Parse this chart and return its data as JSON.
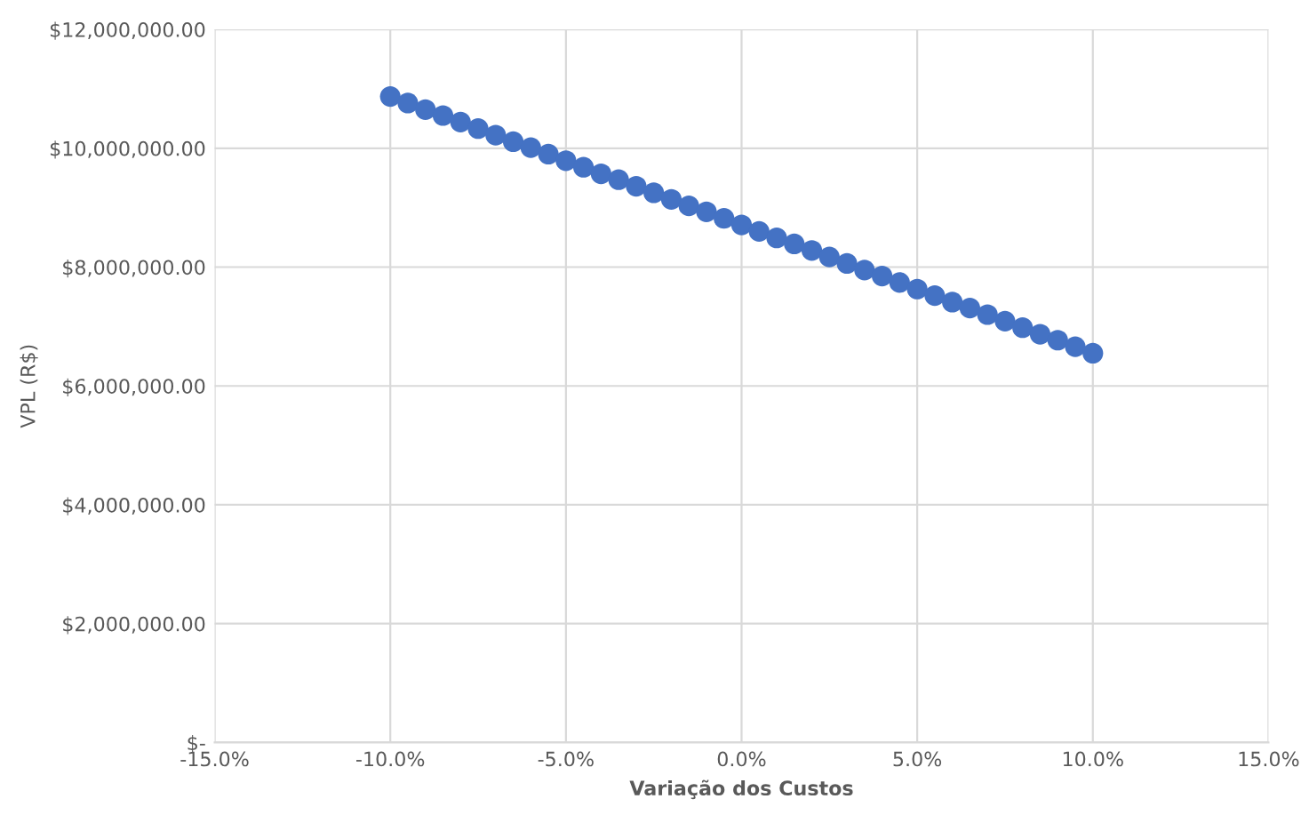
{
  "chart_data": {
    "type": "scatter",
    "xlabel": "Variação dos Custos",
    "ylabel": "VPL (R$)",
    "x": [
      -10,
      -9.5,
      -9,
      -8.5,
      -8,
      -7.5,
      -7,
      -6.5,
      -6,
      -5.5,
      -5,
      -4.5,
      -4,
      -3.5,
      -3,
      -2.5,
      -2,
      -1.5,
      -1,
      -0.5,
      0,
      0.5,
      1,
      1.5,
      2,
      2.5,
      3,
      3.5,
      4,
      4.5,
      5,
      5.5,
      6,
      6.5,
      7,
      7.5,
      8,
      8.5,
      9,
      9.5,
      10
    ],
    "series": [
      {
        "color": "#4472c4",
        "values": [
          10870000,
          10760000,
          10650000,
          10550000,
          10440000,
          10330000,
          10220000,
          10110000,
          10010000,
          9900000,
          9790000,
          9680000,
          9570000,
          9470000,
          9360000,
          9250000,
          9140000,
          9030000,
          8930000,
          8820000,
          8710000,
          8600000,
          8490000,
          8390000,
          8280000,
          8170000,
          8060000,
          7950000,
          7850000,
          7740000,
          7630000,
          7520000,
          7410000,
          7310000,
          7200000,
          7090000,
          6980000,
          6870000,
          6770000,
          6660000,
          6550000
        ]
      }
    ],
    "xlim": [
      -15,
      15
    ],
    "xticks": [
      {
        "value": -15,
        "label": "-15.0%"
      },
      {
        "value": -10,
        "label": "-10.0%"
      },
      {
        "value": -5,
        "label": "-5.0%"
      },
      {
        "value": 0,
        "label": "0.0%"
      },
      {
        "value": 5,
        "label": "5.0%"
      },
      {
        "value": 10,
        "label": "10.0%"
      },
      {
        "value": 15,
        "label": "15.0%"
      }
    ],
    "ylim": [
      0,
      12000000
    ],
    "yticks": [
      {
        "value": 0,
        "label": "$-"
      },
      {
        "value": 2000000,
        "label": "$2,000,000.00"
      },
      {
        "value": 4000000,
        "label": "$4,000,000.00"
      },
      {
        "value": 6000000,
        "label": "$6,000,000.00"
      },
      {
        "value": 8000000,
        "label": "$8,000,000.00"
      },
      {
        "value": 10000000,
        "label": "$10,000,000.00"
      },
      {
        "value": 12000000,
        "label": "$12,000,000.00"
      }
    ],
    "grid": true,
    "marker": "circle"
  }
}
